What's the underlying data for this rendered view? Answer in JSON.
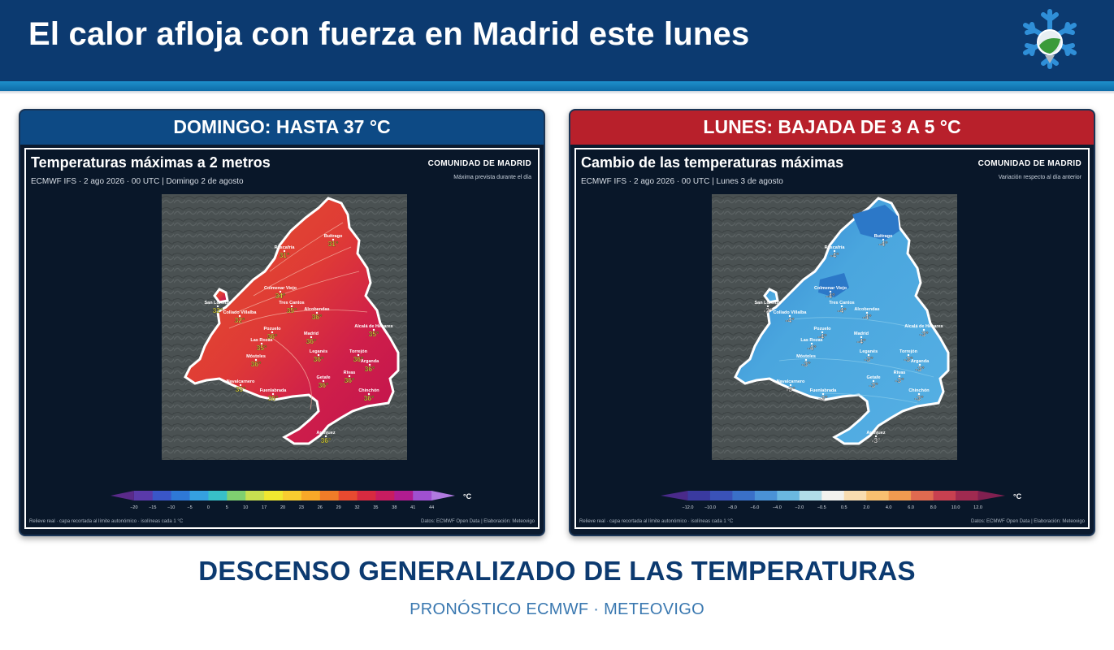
{
  "header": {
    "title": "El calor afloja con fuerza en Madrid este lunes",
    "logo_icon": "snowflake-globe-icon"
  },
  "panels": [
    {
      "heading": "DOMINGO: HASTA 37 °C",
      "heading_color": "#0d4a85",
      "map_title": "Temperaturas máximas a 2 metros",
      "subtitle": "ECMWF IFS · 2 ago 2026 · 00 UTC  |  Domingo 2 de agosto",
      "region": "COMUNIDAD DE MADRID",
      "note": "Máxima prevista durante el día",
      "footer_left": "Relieve real · capa recortada al límite autonómico · isolíneas cada 1 °C",
      "footer_right": "Datos: ECMWF Open Data | Elaboración: Meteovigo",
      "unit": "°C",
      "colorbar": {
        "ticks": [
          "−20",
          "−15",
          "−10",
          "−5",
          "0",
          "5",
          "10",
          "17",
          "20",
          "23",
          "26",
          "29",
          "32",
          "35",
          "38",
          "41",
          "44"
        ],
        "colors": [
          "#5a2a8a",
          "#5a3aaa",
          "#3a56c8",
          "#2e78d6",
          "#35a0e0",
          "#38c0c8",
          "#7fd070",
          "#c8e050",
          "#f0e830",
          "#f8cc30",
          "#f8a828",
          "#f07c28",
          "#e84a30",
          "#d82a40",
          "#c81c60",
          "#b01c90",
          "#a050d0",
          "#b07ae0"
        ]
      },
      "cities": [
        {
          "name": "Buitrago",
          "value": "31°"
        },
        {
          "name": "Rascafría",
          "value": "31°"
        },
        {
          "name": "Colmenar Viejo",
          "value": "34°"
        },
        {
          "name": "Tres Cantos",
          "value": "35°"
        },
        {
          "name": "San Lorenzo",
          "value": "32°"
        },
        {
          "name": "Collado Villalba",
          "value": "32°"
        },
        {
          "name": "Alcobendas",
          "value": "36°"
        },
        {
          "name": "Alcalá de Henares",
          "value": "35°"
        },
        {
          "name": "Pozuelo",
          "value": "36°"
        },
        {
          "name": "Madrid",
          "value": "36°"
        },
        {
          "name": "Las Rozas",
          "value": "35°"
        },
        {
          "name": "Leganés",
          "value": "36°"
        },
        {
          "name": "Torrejón",
          "value": "36°"
        },
        {
          "name": "Arganda",
          "value": "36°"
        },
        {
          "name": "Móstoles",
          "value": "36°"
        },
        {
          "name": "Getafe",
          "value": "36°"
        },
        {
          "name": "Rivas",
          "value": "36°"
        },
        {
          "name": "Navalcarnero",
          "value": "35°"
        },
        {
          "name": "Fuenlabrada",
          "value": "36°"
        },
        {
          "name": "Chinchón",
          "value": "36°"
        },
        {
          "name": "Aranjuez",
          "value": "36°"
        }
      ]
    },
    {
      "heading": "LUNES: BAJADA DE 3 A 5 °C",
      "heading_color": "#b8202b",
      "map_title": "Cambio de las temperaturas máximas",
      "subtitle": "ECMWF IFS · 2 ago 2026 · 00 UTC  |  Lunes 3 de agosto",
      "region": "COMUNIDAD DE MADRID",
      "note": "Variación respecto al día anterior",
      "footer_left": "Relieve real · capa recortada al límite autonómico · isolíneas cada 1 °C",
      "footer_right": "Datos: ECMWF Open Data | Elaboración: Meteovigo",
      "unit": "°C",
      "colorbar": {
        "ticks": [
          "−12.0",
          "−10.0",
          "−8.0",
          "−6.0",
          "−4.0",
          "−2.0",
          "−0.5",
          "0.5",
          "2.0",
          "4.0",
          "6.0",
          "8.0",
          "10.0",
          "12.0"
        ],
        "colors": [
          "#4a2a8a",
          "#3a3aa0",
          "#3a52b8",
          "#3a70c8",
          "#4a92d6",
          "#6ab8e0",
          "#b0dce8",
          "#f2f2ee",
          "#f8dcb0",
          "#f8c070",
          "#f09a50",
          "#e06a50",
          "#c84050",
          "#a02a50",
          "#802050"
        ]
      },
      "cities": [
        {
          "name": "Buitrago",
          "value": "-4°"
        },
        {
          "name": "Rascafría",
          "value": "-4°"
        },
        {
          "name": "Colmenar Viejo",
          "value": "-4°"
        },
        {
          "name": "Tres Cantos",
          "value": "-4°"
        },
        {
          "name": "San Lorenzo",
          "value": "-3°"
        },
        {
          "name": "Collado Villalba",
          "value": "-4°"
        },
        {
          "name": "Alcobendas",
          "value": "-4°"
        },
        {
          "name": "Alcalá de Henares",
          "value": "-3°"
        },
        {
          "name": "Pozuelo",
          "value": "-4°"
        },
        {
          "name": "Madrid",
          "value": "-4°"
        },
        {
          "name": "Las Rozas",
          "value": "-4°"
        },
        {
          "name": "Leganés",
          "value": "-3°"
        },
        {
          "name": "Torrejón",
          "value": "-3°"
        },
        {
          "name": "Arganda",
          "value": "-3°"
        },
        {
          "name": "Móstoles",
          "value": "-3°"
        },
        {
          "name": "Getafe",
          "value": "-3°"
        },
        {
          "name": "Rivas",
          "value": "-3°"
        },
        {
          "name": "Navalcarnero",
          "value": "-3°"
        },
        {
          "name": "Fuenlabrada",
          "value": "-3°"
        },
        {
          "name": "Chinchón",
          "value": "-3°"
        },
        {
          "name": "Aranjuez",
          "value": "-3°"
        }
      ]
    }
  ],
  "footer": {
    "title": "DESCENSO GENERALIZADO DE LAS TEMPERATURAS",
    "subtitle": "PRONÓSTICO ECMWF · METEOVIGO"
  }
}
